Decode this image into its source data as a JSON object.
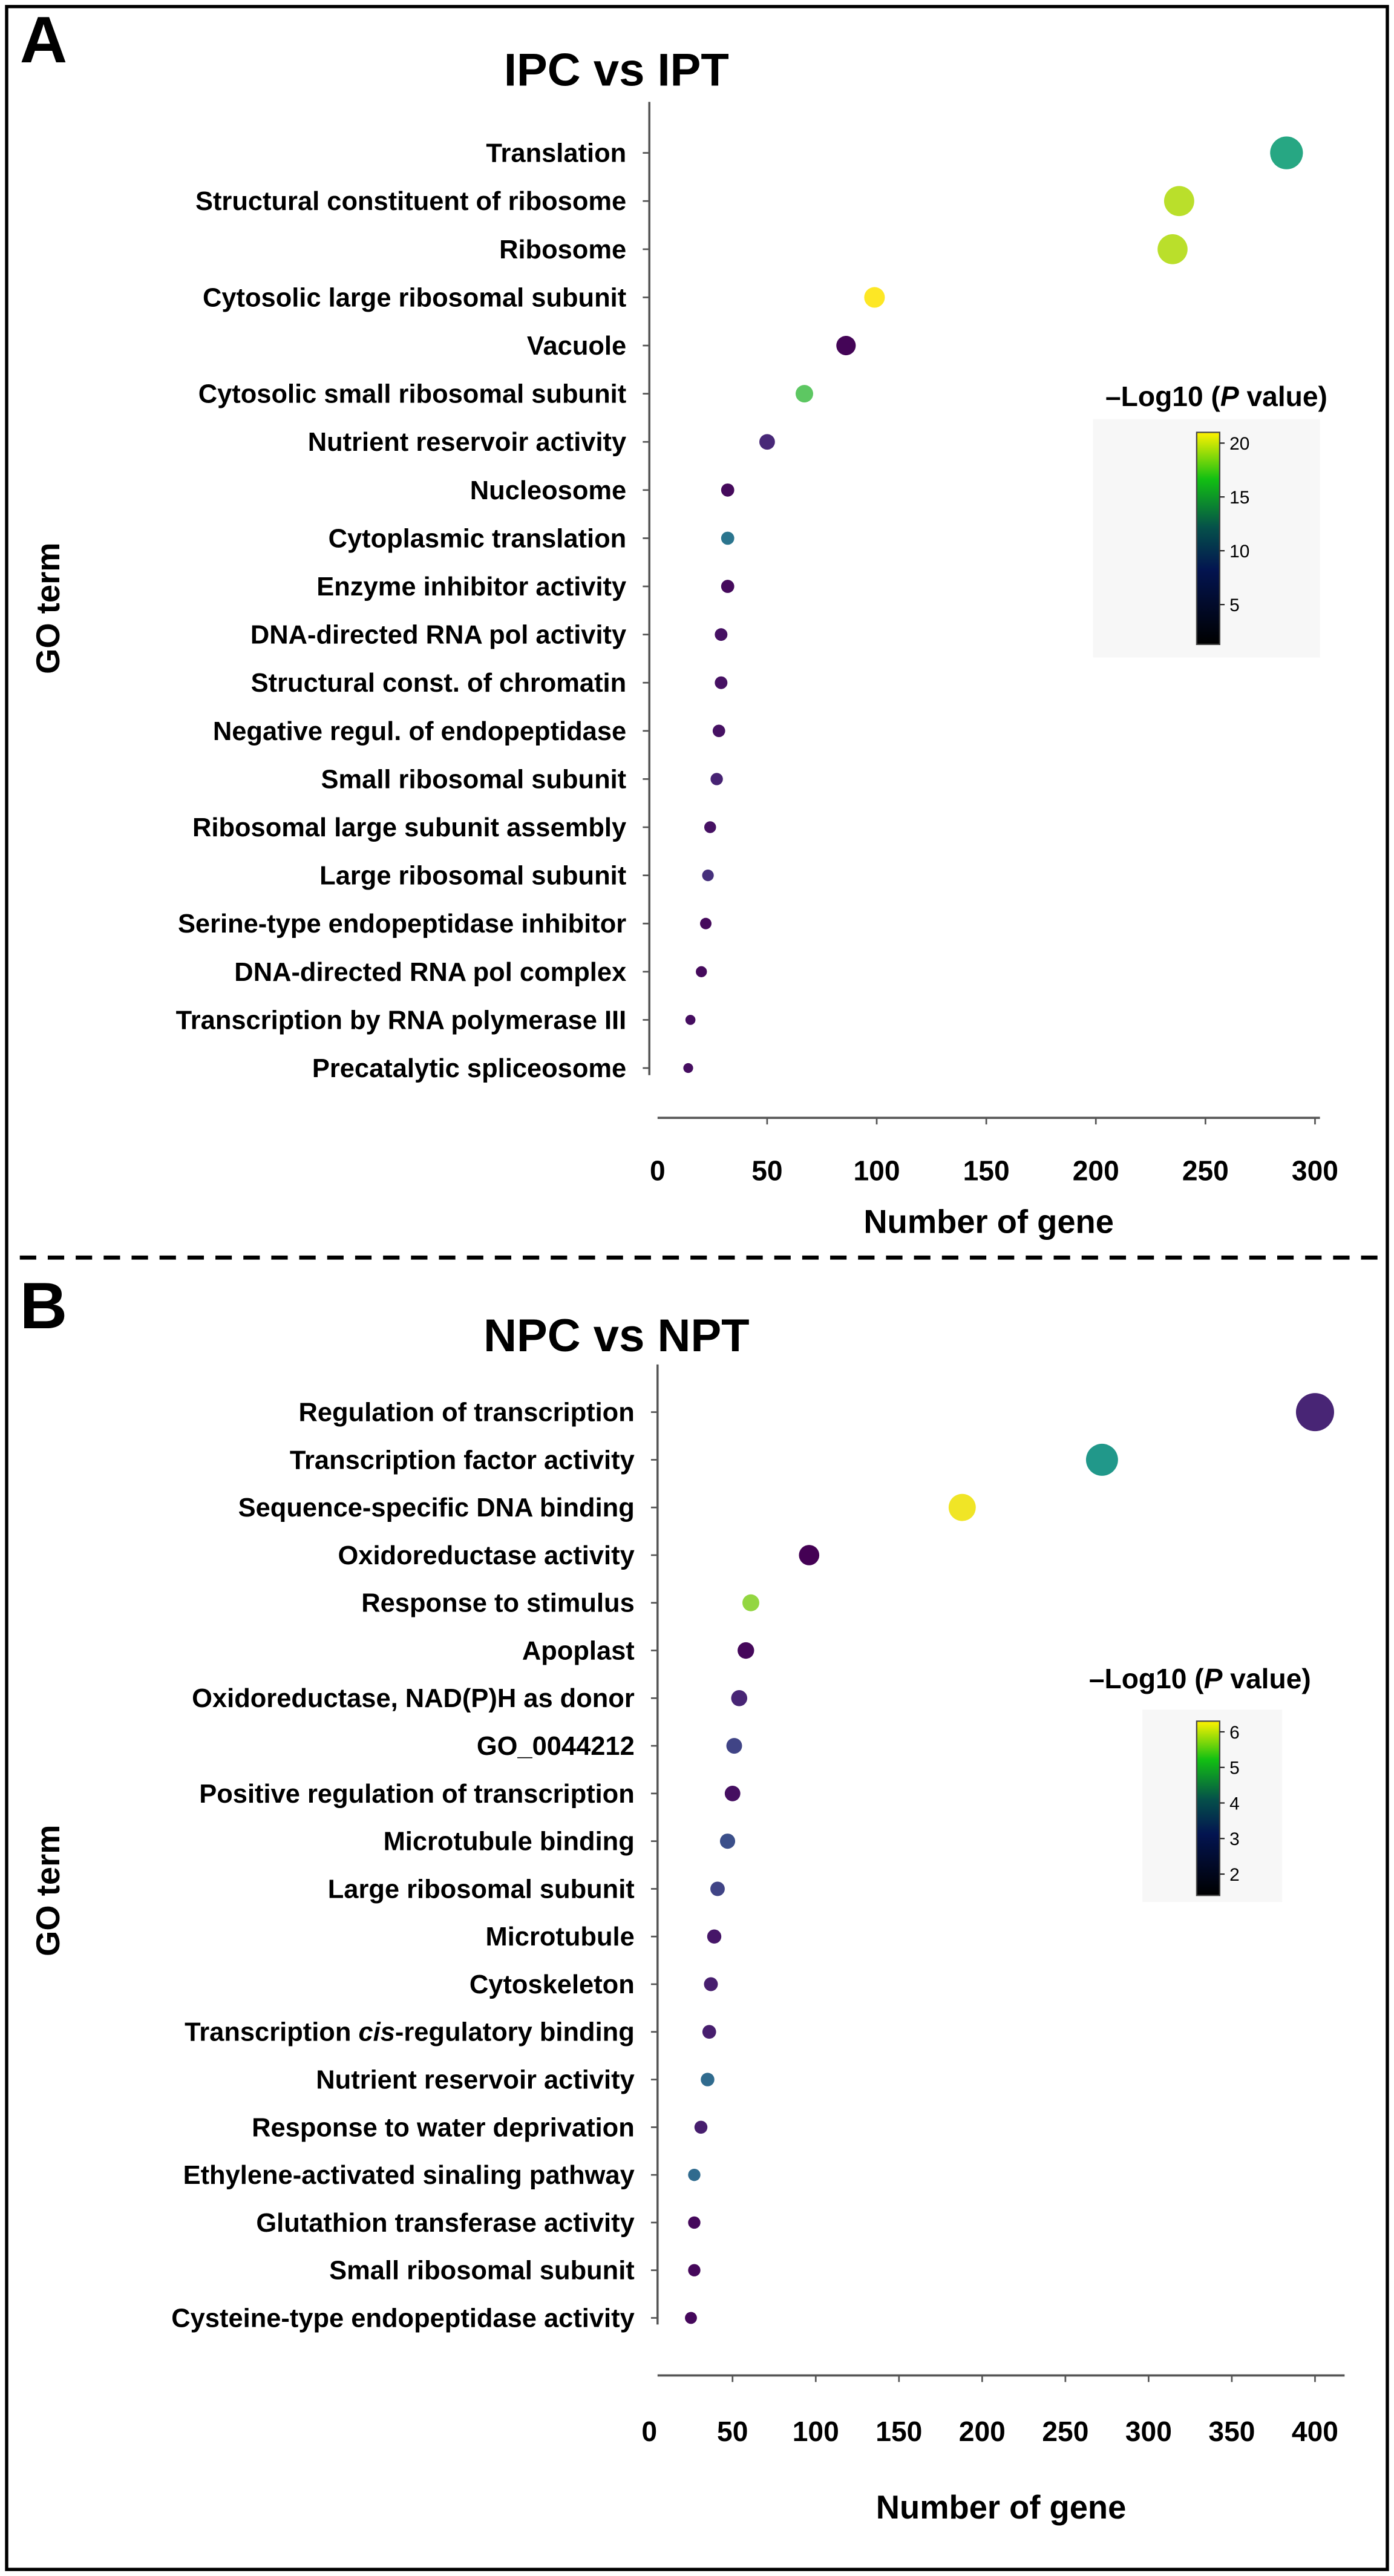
{
  "chart_data": [
    {
      "type": "scatter",
      "panel_label": "A",
      "title": "IPC vs IPT",
      "xlabel": "Number of gene",
      "ylabel": "GO term",
      "xlim": [
        0,
        310
      ],
      "xticks": [
        0,
        50,
        100,
        150,
        200,
        250,
        300
      ],
      "colorbar": {
        "title_parts": [
          "–Log10 (",
          "P",
          " value)"
        ],
        "range": [
          1.3,
          21
        ],
        "ticks": [
          5,
          10,
          15,
          20
        ]
      },
      "size_encodes": "Number of gene",
      "categories": [
        {
          "label": "Translation",
          "x": 287,
          "p": 13
        },
        {
          "label": "Structural constituent of ribosome",
          "x": 238,
          "p": 19
        },
        {
          "label": "Ribosome",
          "x": 235,
          "p": 19
        },
        {
          "label": "Cytosolic large ribosomal subunit",
          "x": 99,
          "p": 21
        },
        {
          "label": "Vacuole",
          "x": 86,
          "p": 1.5
        },
        {
          "label": "Cytosolic small ribosomal subunit",
          "x": 67,
          "p": 16
        },
        {
          "label": "Nutrient reservoir activity",
          "x": 50,
          "p": 3.5
        },
        {
          "label": "Nucleosome",
          "x": 32,
          "p": 1.8
        },
        {
          "label": "Cytoplasmic translation",
          "x": 32,
          "p": 9
        },
        {
          "label": "Enzyme inhibitor activity",
          "x": 32,
          "p": 1.8
        },
        {
          "label": "DNA-directed RNA pol activity",
          "x": 29,
          "p": 2.2
        },
        {
          "label": "Structural const. of chromatin",
          "x": 29,
          "p": 2.2
        },
        {
          "label": "Negative regul. of endopeptidase",
          "x": 28,
          "p": 2.2
        },
        {
          "label": "Small ribosomal subunit",
          "x": 27,
          "p": 3.2
        },
        {
          "label": "Ribosomal large subunit assembly",
          "x": 24,
          "p": 2.2
        },
        {
          "label": "Large ribosomal subunit",
          "x": 23,
          "p": 4
        },
        {
          "label": "Serine-type endopeptidase inhibitor",
          "x": 22,
          "p": 1.8
        },
        {
          "label": "DNA-directed RNA pol complex",
          "x": 20,
          "p": 1.8
        },
        {
          "label": "Transcription by RNA polymerase III",
          "x": 15,
          "p": 2
        },
        {
          "label": "Precatalytic spliceosome",
          "x": 14,
          "p": 2
        }
      ]
    },
    {
      "type": "scatter",
      "panel_label": "B",
      "title": "NPC vs NPT",
      "xlabel": "Number of gene",
      "ylabel": "GO term",
      "xlim": [
        0,
        420
      ],
      "xticks": [
        0,
        50,
        100,
        150,
        200,
        250,
        300,
        350,
        400
      ],
      "colorbar": {
        "title_parts": [
          "–Log10 (",
          "P",
          " value)"
        ],
        "range": [
          1.4,
          6.3
        ],
        "ticks": [
          2,
          3,
          4,
          5,
          6
        ]
      },
      "size_encodes": "Number of gene",
      "categories": [
        {
          "label": "Regulation of transcription",
          "x": 400,
          "p": 1.9
        },
        {
          "label": "Transcription factor activity",
          "x": 272,
          "p": 4.0
        },
        {
          "label": "Sequence-specific DNA binding",
          "x": 188,
          "p": 6.2
        },
        {
          "label": "Oxidoreductase activity",
          "x": 96,
          "p": 1.4
        },
        {
          "label": "Response to stimulus",
          "x": 61,
          "p": 5.5
        },
        {
          "label": "Apoplast",
          "x": 58,
          "p": 1.5
        },
        {
          "label": "Oxidoreductase, NAD(P)H as donor",
          "x": 54,
          "p": 1.9
        },
        {
          "label": "GO_0044212",
          "x": 51,
          "p": 2.4
        },
        {
          "label": "Positive regulation of transcription",
          "x": 50,
          "p": 1.6
        },
        {
          "label": "Microtubule binding",
          "x": 47,
          "p": 2.6
        },
        {
          "label": "Large ribosomal subunit",
          "x": 41,
          "p": 2.4
        },
        {
          "label": "Microtubule",
          "x": 39,
          "p": 1.7
        },
        {
          "label": "Cytoskeleton",
          "x": 37,
          "p": 1.8
        },
        {
          "label": "Transcription cis-regulatory binding",
          "x": 36,
          "p": 1.8,
          "italic": "cis"
        },
        {
          "label": "Nutrient reservoir activity",
          "x": 35,
          "p": 3.1
        },
        {
          "label": "Response to water deprivation",
          "x": 31,
          "p": 1.8
        },
        {
          "label": "Ethylene-activated sinaling pathway",
          "x": 27,
          "p": 3.1
        },
        {
          "label": "Glutathion transferase activity",
          "x": 27,
          "p": 1.5
        },
        {
          "label": "Small ribosomal subunit",
          "x": 27,
          "p": 1.5
        },
        {
          "label": "Cysteine-type endopeptidase activity",
          "x": 25,
          "p": 1.5
        }
      ]
    }
  ]
}
